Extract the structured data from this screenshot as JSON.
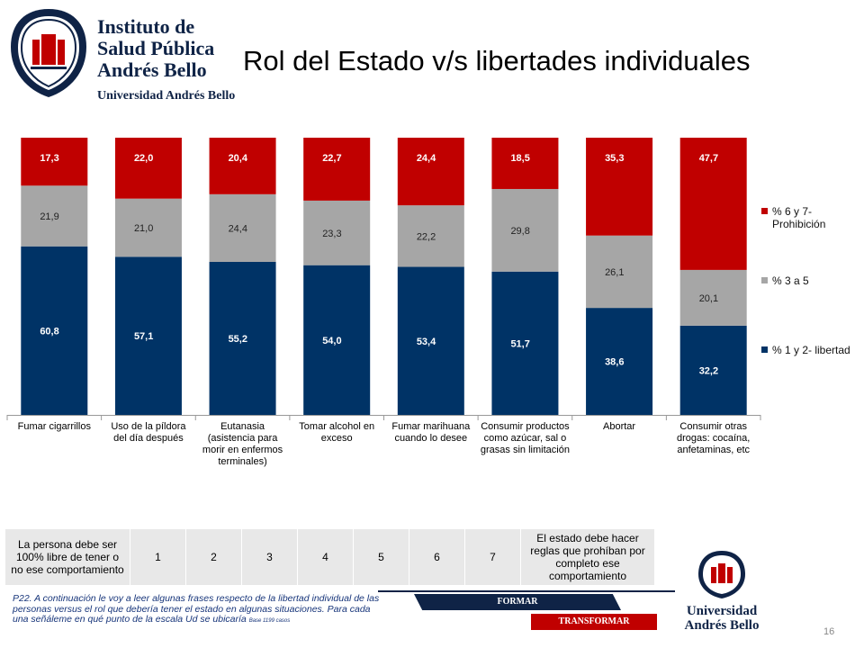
{
  "logo": {
    "line1": "Instituto de",
    "line2": "Salud Pública",
    "line3": "Andrés Bello",
    "line4": "Universidad Andrés Bello"
  },
  "title": "Rol del Estado v/s libertades individuales",
  "chart_data": {
    "type": "bar",
    "stacked": true,
    "normalized": true,
    "categories": [
      "Fumar cigarrillos",
      "Uso de la píldora del día después",
      "Eutanasia (asistencia para morir en enfermos terminales)",
      "Tomar alcohol en exceso",
      "Fumar marihuana cuando lo desee",
      "Consumir productos como azúcar, sal o grasas sin limitación",
      "Abortar",
      "Consumir otras drogas: cocaína, anfetaminas, etc"
    ],
    "series": [
      {
        "name": "% 1 y 2- libertad",
        "color": "#003366",
        "values": [
          60.8,
          57.1,
          55.2,
          54.0,
          53.4,
          51.7,
          38.6,
          32.2
        ],
        "labels": [
          "60,8",
          "57,1",
          "55,2",
          "54,0",
          "53,4",
          "51,7",
          "38,6",
          "32,2"
        ]
      },
      {
        "name": "% 3 a 5",
        "color": "#a6a6a6",
        "values": [
          21.9,
          21.0,
          24.4,
          23.3,
          22.2,
          29.8,
          26.1,
          20.1
        ],
        "labels": [
          "21,9",
          "21,0",
          "24,4",
          "23,3",
          "22,2",
          "29,8",
          "26,1",
          "20,1"
        ]
      },
      {
        "name": "% 6 y 7- Prohibición",
        "color": "#c00000",
        "values": [
          17.3,
          22.0,
          20.4,
          22.7,
          24.4,
          18.5,
          35.3,
          47.7
        ],
        "labels": [
          "17,3",
          "22,0",
          "20,4",
          "22,7",
          "24,4",
          "18,5",
          "35,3",
          "47,7"
        ]
      }
    ],
    "legend": {
      "placement": "right",
      "items": [
        "% 6 y 7- Prohibición",
        "% 3 a 5",
        "% 1 y 2- libertad"
      ]
    }
  },
  "scale": {
    "left_label": "La persona debe ser 100% libre de tener o no ese comportamiento",
    "values": [
      "1",
      "2",
      "3",
      "4",
      "5",
      "6",
      "7"
    ],
    "right_label": "El estado debe hacer reglas que prohíban por completo ese comportamiento"
  },
  "footnote": {
    "text": "P22. A continuación le voy a leer algunas frases respecto de la libertad individual de las personas versus el rol que debería tener el estado en algunas situaciones. Para cada una señáleme en qué punto de la escala Ud se ubicaría",
    "base": "Base 1199 casos"
  },
  "banners": {
    "formar": "FORMAR",
    "transformar": "TRANSFORMAR"
  },
  "logo_bottom": {
    "line1": "Universidad",
    "line2": "Andrés Bello"
  },
  "page_number": "16"
}
